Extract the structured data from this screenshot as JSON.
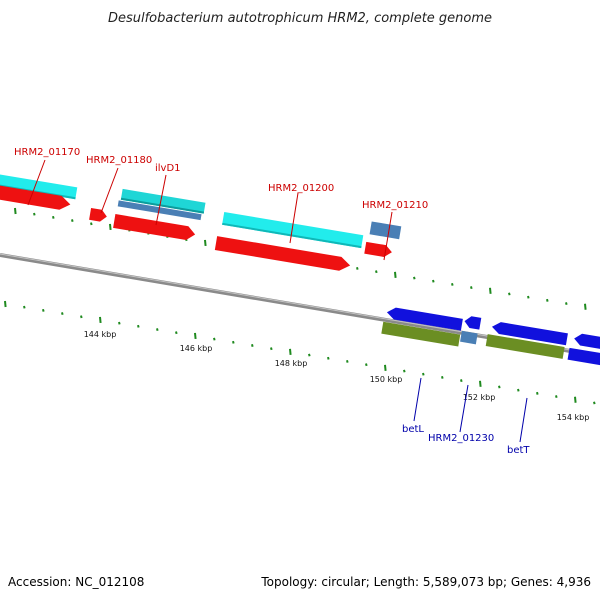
{
  "title": "Desulfobacterium autotrophicum HRM2, complete genome",
  "footer": {
    "accession": "Accession: NC_012108",
    "stats": "Topology: circular; Length: 5,589,073 bp; Genes: 4,936"
  },
  "colors": {
    "backbone": "#8a8a8a",
    "tick": "#1f8a1f",
    "cyan": "#22ecec",
    "red": "#ee1111",
    "steel": "#4a7fb5",
    "blue": "#1111dd",
    "olive": "#6b8e23",
    "label_red": "#cc0000",
    "label_blue": "#0000aa"
  },
  "kbp_labels": [
    "144 kbp",
    "146 kbp",
    "148 kbp",
    "150 kbp",
    "152 kbp",
    "154 kbp"
  ],
  "gene_labels": {
    "hrm2_01170": "HRM2_01170",
    "hrm2_01180": "HRM2_01180",
    "ilvd1": "ilvD1",
    "hrm2_01200": "HRM2_01200",
    "hrm2_01210": "HRM2_01210",
    "betl": "betL",
    "hrm2_01230": "HRM2_01230",
    "bett": "betT"
  }
}
